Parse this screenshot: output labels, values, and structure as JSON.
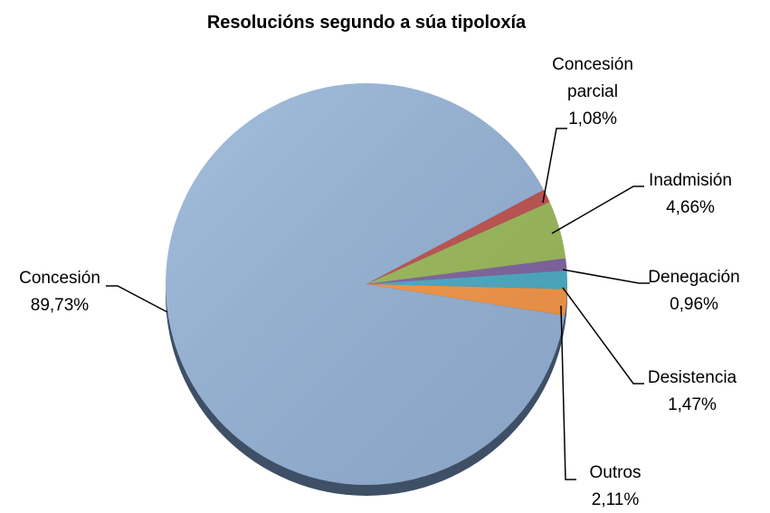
{
  "chart_data": {
    "type": "pie",
    "title": "Resolucións segundo a súa tipoloxía",
    "categories": [
      "Concesión",
      "Concesión parcial",
      "Inadmisión",
      "Denegación",
      "Desistencia",
      "Outros"
    ],
    "values": [
      89.73,
      1.08,
      4.66,
      0.96,
      1.47,
      2.11
    ],
    "value_labels": [
      "89,73%",
      "1,08%",
      "4,66%",
      "0,96%",
      "1,47%",
      "2,11%"
    ],
    "colors": [
      "#95b3d7",
      "#c0504d",
      "#9bbb59",
      "#8064a2",
      "#4bacc6",
      "#f79646"
    ]
  }
}
